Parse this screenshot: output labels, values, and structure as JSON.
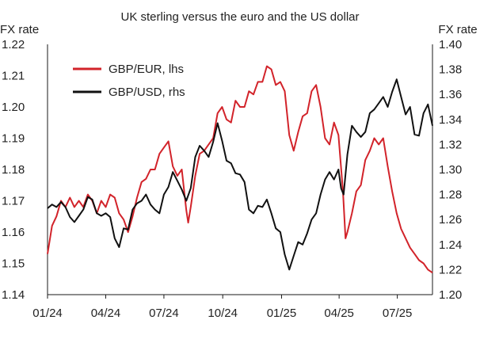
{
  "chart_data": {
    "type": "line",
    "title": "UK sterling versus the euro and the US dollar",
    "ylabel_left": "FX rate",
    "ylabel_right": "FX rate",
    "x_ticks": [
      "01/24",
      "04/24",
      "07/24",
      "10/24",
      "01/25",
      "04/25",
      "07/25"
    ],
    "x_range": [
      "2024-01-01",
      "2025-08-25"
    ],
    "y_left": {
      "range": [
        1.14,
        1.22
      ],
      "ticks": [
        "1.14",
        "1.15",
        "1.16",
        "1.17",
        "1.18",
        "1.19",
        "1.20",
        "1.21",
        "1.22"
      ]
    },
    "y_right": {
      "range": [
        1.2,
        1.4
      ],
      "ticks": [
        "1.20",
        "1.22",
        "1.24",
        "1.26",
        "1.28",
        "1.30",
        "1.32",
        "1.34",
        "1.36",
        "1.38",
        "1.40"
      ]
    },
    "grid": false,
    "legend_position": "top-left",
    "series": [
      {
        "name": "GBP/EUR, lhs",
        "axis": "left",
        "color": "#d2232a",
        "points": [
          [
            "2024-01-01",
            1.153
          ],
          [
            "2024-01-08",
            1.162
          ],
          [
            "2024-01-15",
            1.165
          ],
          [
            "2024-01-22",
            1.17
          ],
          [
            "2024-01-29",
            1.168
          ],
          [
            "2024-02-05",
            1.171
          ],
          [
            "2024-02-12",
            1.168
          ],
          [
            "2024-02-19",
            1.17
          ],
          [
            "2024-02-26",
            1.168
          ],
          [
            "2024-03-04",
            1.172
          ],
          [
            "2024-03-11",
            1.17
          ],
          [
            "2024-03-18",
            1.166
          ],
          [
            "2024-03-25",
            1.17
          ],
          [
            "2024-04-01",
            1.168
          ],
          [
            "2024-04-08",
            1.172
          ],
          [
            "2024-04-15",
            1.171
          ],
          [
            "2024-04-22",
            1.166
          ],
          [
            "2024-04-29",
            1.164
          ],
          [
            "2024-05-06",
            1.16
          ],
          [
            "2024-05-13",
            1.165
          ],
          [
            "2024-05-20",
            1.171
          ],
          [
            "2024-05-27",
            1.176
          ],
          [
            "2024-06-03",
            1.177
          ],
          [
            "2024-06-10",
            1.18
          ],
          [
            "2024-06-17",
            1.18
          ],
          [
            "2024-06-24",
            1.185
          ],
          [
            "2024-07-01",
            1.187
          ],
          [
            "2024-07-08",
            1.189
          ],
          [
            "2024-07-15",
            1.181
          ],
          [
            "2024-07-22",
            1.178
          ],
          [
            "2024-07-29",
            1.18
          ],
          [
            "2024-08-05",
            1.167
          ],
          [
            "2024-08-08",
            1.163
          ],
          [
            "2024-08-12",
            1.168
          ],
          [
            "2024-08-19",
            1.178
          ],
          [
            "2024-08-26",
            1.185
          ],
          [
            "2024-09-02",
            1.186
          ],
          [
            "2024-09-09",
            1.188
          ],
          [
            "2024-09-16",
            1.19
          ],
          [
            "2024-09-23",
            1.198
          ],
          [
            "2024-09-30",
            1.2
          ],
          [
            "2024-10-07",
            1.196
          ],
          [
            "2024-10-14",
            1.195
          ],
          [
            "2024-10-21",
            1.202
          ],
          [
            "2024-10-28",
            1.2
          ],
          [
            "2024-11-04",
            1.2
          ],
          [
            "2024-11-11",
            1.205
          ],
          [
            "2024-11-18",
            1.204
          ],
          [
            "2024-11-25",
            1.208
          ],
          [
            "2024-12-02",
            1.208
          ],
          [
            "2024-12-09",
            1.213
          ],
          [
            "2024-12-16",
            1.212
          ],
          [
            "2024-12-23",
            1.207
          ],
          [
            "2024-12-30",
            1.208
          ],
          [
            "2025-01-06",
            1.205
          ],
          [
            "2025-01-13",
            1.191
          ],
          [
            "2025-01-20",
            1.186
          ],
          [
            "2025-01-27",
            1.192
          ],
          [
            "2025-02-03",
            1.197
          ],
          [
            "2025-02-10",
            1.198
          ],
          [
            "2025-02-17",
            1.205
          ],
          [
            "2025-02-24",
            1.207
          ],
          [
            "2025-03-03",
            1.2
          ],
          [
            "2025-03-10",
            1.19
          ],
          [
            "2025-03-17",
            1.188
          ],
          [
            "2025-03-24",
            1.195
          ],
          [
            "2025-03-31",
            1.191
          ],
          [
            "2025-04-07",
            1.173
          ],
          [
            "2025-04-11",
            1.158
          ],
          [
            "2025-04-14",
            1.16
          ],
          [
            "2025-04-21",
            1.166
          ],
          [
            "2025-04-28",
            1.173
          ],
          [
            "2025-05-05",
            1.175
          ],
          [
            "2025-05-12",
            1.183
          ],
          [
            "2025-05-19",
            1.186
          ],
          [
            "2025-05-26",
            1.19
          ],
          [
            "2025-06-02",
            1.188
          ],
          [
            "2025-06-09",
            1.19
          ],
          [
            "2025-06-16",
            1.181
          ],
          [
            "2025-06-23",
            1.173
          ],
          [
            "2025-06-30",
            1.166
          ],
          [
            "2025-07-07",
            1.161
          ],
          [
            "2025-07-14",
            1.158
          ],
          [
            "2025-07-21",
            1.155
          ],
          [
            "2025-07-28",
            1.153
          ],
          [
            "2025-08-04",
            1.151
          ],
          [
            "2025-08-11",
            1.15
          ],
          [
            "2025-08-18",
            1.148
          ],
          [
            "2025-08-25",
            1.147
          ]
        ]
      },
      {
        "name": "GBP/USD, rhs",
        "axis": "right",
        "color": "#111111",
        "points": [
          [
            "2024-01-01",
            1.269
          ],
          [
            "2024-01-08",
            1.272
          ],
          [
            "2024-01-15",
            1.27
          ],
          [
            "2024-01-22",
            1.274
          ],
          [
            "2024-01-29",
            1.27
          ],
          [
            "2024-02-05",
            1.262
          ],
          [
            "2024-02-12",
            1.258
          ],
          [
            "2024-02-19",
            1.263
          ],
          [
            "2024-02-26",
            1.268
          ],
          [
            "2024-03-04",
            1.278
          ],
          [
            "2024-03-11",
            1.276
          ],
          [
            "2024-03-18",
            1.265
          ],
          [
            "2024-03-25",
            1.263
          ],
          [
            "2024-04-01",
            1.265
          ],
          [
            "2024-04-08",
            1.262
          ],
          [
            "2024-04-15",
            1.245
          ],
          [
            "2024-04-22",
            1.238
          ],
          [
            "2024-04-29",
            1.253
          ],
          [
            "2024-05-06",
            1.252
          ],
          [
            "2024-05-13",
            1.268
          ],
          [
            "2024-05-20",
            1.273
          ],
          [
            "2024-05-27",
            1.275
          ],
          [
            "2024-06-03",
            1.28
          ],
          [
            "2024-06-10",
            1.272
          ],
          [
            "2024-06-17",
            1.268
          ],
          [
            "2024-06-24",
            1.265
          ],
          [
            "2024-07-01",
            1.28
          ],
          [
            "2024-07-08",
            1.286
          ],
          [
            "2024-07-15",
            1.298
          ],
          [
            "2024-07-22",
            1.291
          ],
          [
            "2024-07-29",
            1.284
          ],
          [
            "2024-08-05",
            1.275
          ],
          [
            "2024-08-12",
            1.285
          ],
          [
            "2024-08-19",
            1.31
          ],
          [
            "2024-08-26",
            1.319
          ],
          [
            "2024-09-02",
            1.315
          ],
          [
            "2024-09-09",
            1.31
          ],
          [
            "2024-09-16",
            1.322
          ],
          [
            "2024-09-23",
            1.337
          ],
          [
            "2024-09-30",
            1.323
          ],
          [
            "2024-10-07",
            1.307
          ],
          [
            "2024-10-14",
            1.305
          ],
          [
            "2024-10-21",
            1.297
          ],
          [
            "2024-10-28",
            1.296
          ],
          [
            "2024-11-04",
            1.29
          ],
          [
            "2024-11-11",
            1.268
          ],
          [
            "2024-11-18",
            1.265
          ],
          [
            "2024-11-25",
            1.271
          ],
          [
            "2024-12-02",
            1.27
          ],
          [
            "2024-12-09",
            1.276
          ],
          [
            "2024-12-16",
            1.265
          ],
          [
            "2024-12-23",
            1.253
          ],
          [
            "2024-12-30",
            1.25
          ],
          [
            "2025-01-06",
            1.232
          ],
          [
            "2025-01-13",
            1.22
          ],
          [
            "2025-01-20",
            1.231
          ],
          [
            "2025-01-27",
            1.242
          ],
          [
            "2025-02-03",
            1.24
          ],
          [
            "2025-02-10",
            1.249
          ],
          [
            "2025-02-17",
            1.26
          ],
          [
            "2025-02-24",
            1.265
          ],
          [
            "2025-03-03",
            1.28
          ],
          [
            "2025-03-10",
            1.292
          ],
          [
            "2025-03-17",
            1.298
          ],
          [
            "2025-03-24",
            1.292
          ],
          [
            "2025-03-31",
            1.3
          ],
          [
            "2025-04-04",
            1.285
          ],
          [
            "2025-04-08",
            1.28
          ],
          [
            "2025-04-14",
            1.312
          ],
          [
            "2025-04-21",
            1.335
          ],
          [
            "2025-04-28",
            1.33
          ],
          [
            "2025-05-05",
            1.326
          ],
          [
            "2025-05-12",
            1.33
          ],
          [
            "2025-05-19",
            1.345
          ],
          [
            "2025-05-26",
            1.348
          ],
          [
            "2025-06-02",
            1.353
          ],
          [
            "2025-06-09",
            1.358
          ],
          [
            "2025-06-16",
            1.35
          ],
          [
            "2025-06-23",
            1.362
          ],
          [
            "2025-06-30",
            1.372
          ],
          [
            "2025-07-07",
            1.358
          ],
          [
            "2025-07-14",
            1.344
          ],
          [
            "2025-07-21",
            1.35
          ],
          [
            "2025-07-28",
            1.328
          ],
          [
            "2025-08-04",
            1.327
          ],
          [
            "2025-08-11",
            1.345
          ],
          [
            "2025-08-18",
            1.352
          ],
          [
            "2025-08-25",
            1.335
          ]
        ]
      }
    ]
  }
}
